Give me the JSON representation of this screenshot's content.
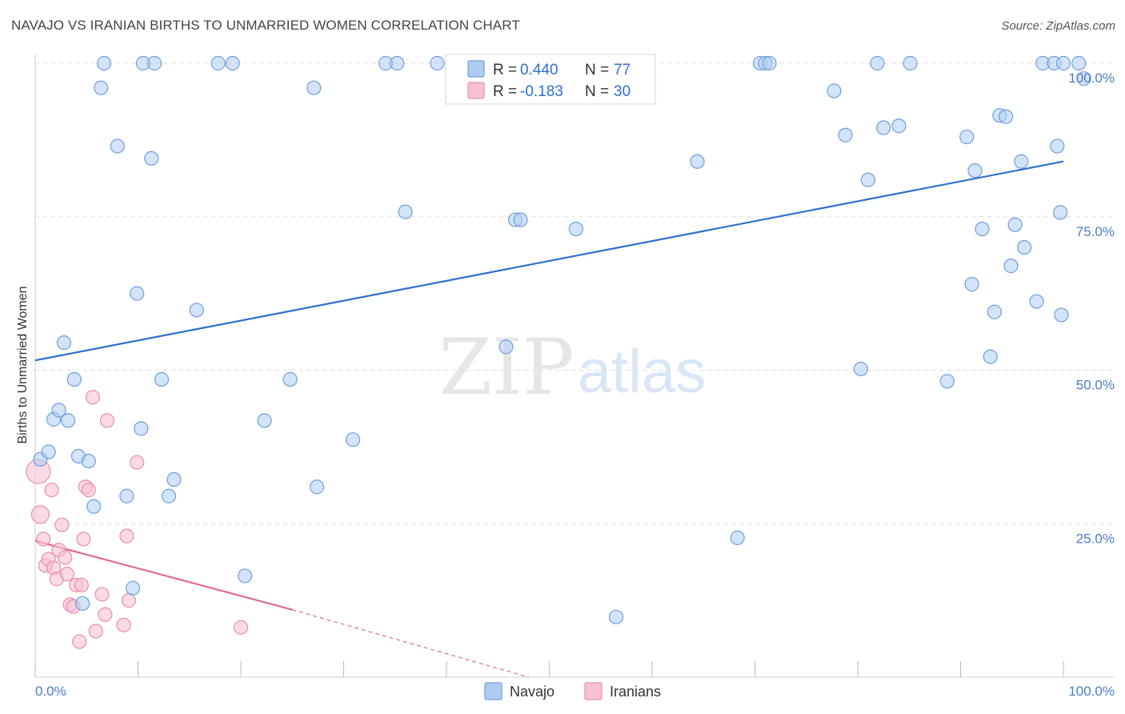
{
  "title": "NAVAJO VS IRANIAN BIRTHS TO UNMARRIED WOMEN CORRELATION CHART",
  "source": "Source: ZipAtlas.com",
  "watermark": {
    "zip": "ZIP",
    "atlas": "atlas"
  },
  "colors": {
    "navajo_fill": "#aeccf2",
    "navajo_stroke": "#6f9fdc",
    "navajo_line": "#2b6fcf",
    "iranians_fill": "#f7c1d2",
    "iranians_stroke": "#e88fab",
    "iranians_line": "#e06a94",
    "tick_label": "#4a7cc8",
    "grid": "#dddddd"
  },
  "legend": {
    "rows": [
      {
        "r_label": "R =",
        "r_value": "0.440",
        "n_label": "N =",
        "n_value": "77"
      },
      {
        "r_label": "R =",
        "r_value": "-0.183",
        "n_label": "N =",
        "n_value": "30"
      }
    ]
  },
  "chart_data": {
    "type": "scatter",
    "title": "NAVAJO VS IRANIAN BIRTHS TO UNMARRIED WOMEN CORRELATION CHART",
    "xlabel": "",
    "ylabel": "Births to Unmarried Women",
    "xlim": [
      0,
      100
    ],
    "ylim": [
      0,
      100
    ],
    "x_tick_labels": [
      "0.0%",
      "100.0%"
    ],
    "y_tick_labels": [
      "25.0%",
      "50.0%",
      "75.0%",
      "100.0%"
    ],
    "y_ticks": [
      25,
      50,
      75,
      100
    ],
    "grid": true,
    "legend_position": "top-center",
    "series": [
      {
        "name": "Navajo",
        "r": 0.44,
        "n": 77,
        "trend": {
          "x": [
            0,
            100
          ],
          "y": [
            51.6,
            84.0
          ]
        },
        "points": [
          [
            0.5,
            35.5
          ],
          [
            1.3,
            36.7
          ],
          [
            1.8,
            42.0
          ],
          [
            2.3,
            43.5
          ],
          [
            2.8,
            54.5
          ],
          [
            3.2,
            41.8
          ],
          [
            3.8,
            48.5
          ],
          [
            4.2,
            36.0
          ],
          [
            4.6,
            12.0
          ],
          [
            5.2,
            35.2
          ],
          [
            5.7,
            27.8
          ],
          [
            6.4,
            96.0
          ],
          [
            8.0,
            86.5
          ],
          [
            8.9,
            29.5
          ],
          [
            9.5,
            14.5
          ],
          [
            9.9,
            62.5
          ],
          [
            10.3,
            40.5
          ],
          [
            11.3,
            84.5
          ],
          [
            12.3,
            48.5
          ],
          [
            13.0,
            29.5
          ],
          [
            13.5,
            32.2
          ],
          [
            15.7,
            59.8
          ],
          [
            6.7,
            100
          ],
          [
            10.5,
            100
          ],
          [
            11.6,
            100
          ],
          [
            17.8,
            100
          ],
          [
            19.2,
            100
          ],
          [
            20.4,
            16.5
          ],
          [
            22.3,
            41.8
          ],
          [
            24.8,
            48.5
          ],
          [
            27.1,
            96.0
          ],
          [
            27.4,
            31.0
          ],
          [
            30.9,
            38.7
          ],
          [
            34.1,
            100
          ],
          [
            35.2,
            100
          ],
          [
            36.0,
            75.8
          ],
          [
            39.1,
            100
          ],
          [
            45.8,
            53.8
          ],
          [
            46.7,
            74.5
          ],
          [
            47.2,
            74.5
          ],
          [
            52.6,
            73.0
          ],
          [
            56.5,
            9.8
          ],
          [
            64.4,
            84.0
          ],
          [
            68.3,
            22.7
          ],
          [
            70.5,
            100
          ],
          [
            71.0,
            100
          ],
          [
            71.4,
            100
          ],
          [
            77.7,
            95.5
          ],
          [
            78.8,
            88.3
          ],
          [
            80.3,
            50.2
          ],
          [
            81.0,
            81.0
          ],
          [
            81.9,
            100
          ],
          [
            82.5,
            89.5
          ],
          [
            84.0,
            89.8
          ],
          [
            85.1,
            100
          ],
          [
            88.7,
            48.2
          ],
          [
            90.6,
            88.0
          ],
          [
            91.1,
            64.0
          ],
          [
            91.4,
            82.5
          ],
          [
            92.1,
            73.0
          ],
          [
            92.9,
            52.2
          ],
          [
            93.3,
            59.5
          ],
          [
            93.8,
            91.5
          ],
          [
            94.4,
            91.3
          ],
          [
            94.9,
            67.0
          ],
          [
            95.3,
            73.7
          ],
          [
            95.9,
            84.0
          ],
          [
            96.2,
            70.0
          ],
          [
            97.4,
            61.2
          ],
          [
            98.0,
            100
          ],
          [
            99.1,
            100
          ],
          [
            99.4,
            86.5
          ],
          [
            99.7,
            75.7
          ],
          [
            100.0,
            100
          ],
          [
            99.8,
            59.0
          ],
          [
            101.5,
            100
          ],
          [
            102.0,
            97.5
          ]
        ]
      },
      {
        "name": "Iranians",
        "r": -0.183,
        "n": 30,
        "trend": {
          "x": [
            0,
            25
          ],
          "y": [
            22.2,
            11.0
          ],
          "dashed_to": {
            "x": 48,
            "y": 0
          }
        },
        "points": [
          [
            0.3,
            33.5
          ],
          [
            0.5,
            26.5
          ],
          [
            0.8,
            22.5
          ],
          [
            1.0,
            18.2
          ],
          [
            1.3,
            19.2
          ],
          [
            1.6,
            30.5
          ],
          [
            1.8,
            17.8
          ],
          [
            2.1,
            16.0
          ],
          [
            2.3,
            20.7
          ],
          [
            2.6,
            24.8
          ],
          [
            2.9,
            19.5
          ],
          [
            3.1,
            16.8
          ],
          [
            3.4,
            11.8
          ],
          [
            3.7,
            11.5
          ],
          [
            4.0,
            15.0
          ],
          [
            4.3,
            5.8
          ],
          [
            4.5,
            15.0
          ],
          [
            4.7,
            22.5
          ],
          [
            4.9,
            31.0
          ],
          [
            5.2,
            30.5
          ],
          [
            5.6,
            45.6
          ],
          [
            5.9,
            7.5
          ],
          [
            6.5,
            13.5
          ],
          [
            6.8,
            10.2
          ],
          [
            7.0,
            41.8
          ],
          [
            8.6,
            8.5
          ],
          [
            8.9,
            23.0
          ],
          [
            9.1,
            12.5
          ],
          [
            9.9,
            35.0
          ],
          [
            20.0,
            8.1
          ]
        ]
      }
    ]
  },
  "bottom_legend": [
    "Navajo",
    "Iranians"
  ]
}
